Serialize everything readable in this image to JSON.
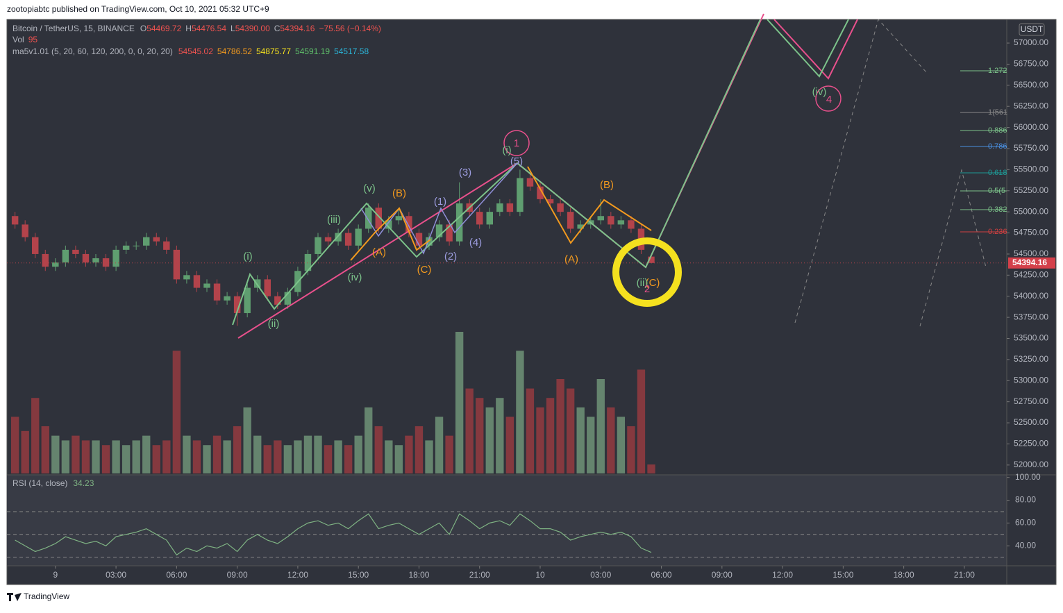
{
  "header": {
    "publisher": "zootopiabtc published on TradingView.com, Oct 10, 2021 05:32 UTC+9",
    "footer": "TradingView",
    "currency": "USDT"
  },
  "legend": {
    "symbol": "Bitcoin / TetherUS, 15, BINANCE",
    "o_label": "O",
    "o": "54469.72",
    "h_label": "H",
    "h": "54476.54",
    "l_label": "L",
    "l": "54390.00",
    "c_label": "C",
    "c": "54394.16",
    "change": "−75.56 (−0.14%)",
    "vol_label": "Vol",
    "vol": "95",
    "ma_label": "ma5v1.01 (5, 20, 60, 120, 200, 0, 0, 20, 20)",
    "ma": [
      "54545.02",
      "54786.52",
      "54875.77",
      "54591.19",
      "54517.58"
    ],
    "rsi_label": "RSI (14, close)",
    "rsi": "34.23"
  },
  "annotations": [
    "1",
    "(i)",
    "(ii)",
    "(iii)",
    "(iv)",
    "(v)",
    "(A)",
    "(B)",
    "(C)",
    "(1)",
    "(2)",
    "(3)",
    "(4)",
    "(5)",
    "(i)",
    "(A)",
    "(B)",
    "(C)",
    "(ii)",
    "2",
    "(iv)",
    "4"
  ],
  "fib_labels": [
    "1.272",
    "1(561",
    "0.886",
    "0.786",
    "0.618",
    "0.5(5",
    "0.382",
    "0.236"
  ],
  "chart_data": [
    {
      "type": "candlestick",
      "up_color": "#5f9e70",
      "down_color": "#b3434b",
      "x": [
        -2,
        -1.5,
        -1,
        -0.5,
        0,
        0.5,
        1,
        1.5,
        2,
        2.5,
        3,
        3.5,
        4,
        4.5,
        5,
        5.5,
        6,
        6.5,
        7,
        7.5,
        8,
        8.5,
        9,
        9.5,
        10,
        10.5,
        11,
        11.5,
        12,
        12.5,
        13,
        13.5,
        14,
        14.5,
        15,
        15.5,
        16,
        16.5,
        17,
        17.5,
        18,
        18.5,
        19,
        19.5,
        20,
        20.5,
        21,
        21.5,
        22,
        22.5,
        23,
        23.5,
        24,
        24.5,
        25,
        25.5,
        26,
        26.5,
        27,
        27.5,
        28,
        28.5,
        29,
        29.5
      ],
      "open": [
        54950,
        54850,
        54700,
        54500,
        54350,
        54400,
        54550,
        54500,
        54400,
        54450,
        54350,
        54550,
        54600,
        54600,
        54700,
        54650,
        54550,
        54200,
        54250,
        54100,
        54150,
        53950,
        54000,
        53800,
        54100,
        54200,
        54000,
        53900,
        54050,
        54300,
        54500,
        54700,
        54650,
        54750,
        54600,
        54800,
        55050,
        54800,
        54900,
        54950,
        54750,
        54600,
        54700,
        54850,
        54650,
        55100,
        55000,
        54850,
        55000,
        55100,
        55000,
        55400,
        55300,
        55150,
        55100,
        55000,
        54800,
        54850,
        54900,
        54950,
        54850,
        54900,
        54800,
        54469.72
      ],
      "high": [
        55000,
        54900,
        54750,
        54550,
        54450,
        54600,
        54600,
        54550,
        54500,
        54500,
        54600,
        54650,
        54650,
        54750,
        54750,
        54700,
        54600,
        54300,
        54300,
        54200,
        54200,
        54050,
        54050,
        54150,
        54250,
        54250,
        54050,
        54100,
        54350,
        54550,
        54750,
        54750,
        54800,
        54800,
        54850,
        55100,
        55100,
        54950,
        55050,
        55000,
        54800,
        54750,
        54900,
        54900,
        55350,
        55150,
        55050,
        55050,
        55150,
        55150,
        55500,
        55450,
        55350,
        55200,
        55150,
        55050,
        54900,
        54950,
        55150,
        55000,
        54950,
        54950,
        54850,
        54476.54
      ],
      "low": [
        54800,
        54650,
        54450,
        54300,
        54300,
        54350,
        54450,
        54350,
        54350,
        54300,
        54300,
        54500,
        54550,
        54550,
        54600,
        54500,
        54150,
        54150,
        54050,
        54050,
        53900,
        53900,
        53650,
        53750,
        54050,
        53950,
        53850,
        53850,
        54000,
        54250,
        54450,
        54600,
        54600,
        54550,
        54550,
        54750,
        54750,
        54750,
        54850,
        54700,
        54550,
        54550,
        54650,
        54600,
        54600,
        54950,
        54800,
        54800,
        54950,
        54950,
        54950,
        55250,
        55100,
        55050,
        54950,
        54750,
        54750,
        54800,
        54850,
        54800,
        54800,
        54750,
        54500,
        54390
      ],
      "close": [
        54850,
        54700,
        54500,
        54350,
        54400,
        54550,
        54500,
        54400,
        54450,
        54350,
        54550,
        54600,
        54600,
        54700,
        54650,
        54550,
        54200,
        54250,
        54100,
        54150,
        53950,
        54000,
        53800,
        54100,
        54200,
        54000,
        53900,
        54050,
        54300,
        54500,
        54700,
        54650,
        54750,
        54600,
        54800,
        55050,
        54800,
        54900,
        54950,
        54750,
        54600,
        54700,
        54850,
        54650,
        55100,
        55000,
        54850,
        55000,
        55100,
        55000,
        55400,
        55300,
        55150,
        55100,
        55000,
        54800,
        54850,
        54900,
        54950,
        54850,
        54900,
        54800,
        54550,
        54394.16
      ],
      "xlim": [
        -2.4,
        47.1
      ],
      "xticks": [
        {
          "value": 0,
          "label": "9"
        },
        {
          "value": 3,
          "label": "03:00"
        },
        {
          "value": 6,
          "label": "06:00"
        },
        {
          "value": 9,
          "label": "09:00"
        },
        {
          "value": 12,
          "label": "12:00"
        },
        {
          "value": 15,
          "label": "15:00"
        },
        {
          "value": 18,
          "label": "18:00"
        },
        {
          "value": 21,
          "label": "21:00"
        },
        {
          "value": 24,
          "label": "10"
        },
        {
          "value": 27,
          "label": "03:00"
        },
        {
          "value": 30,
          "label": "06:00"
        },
        {
          "value": 33,
          "label": "09:00"
        },
        {
          "value": 36,
          "label": "12:00"
        },
        {
          "value": 39,
          "label": "15:00"
        },
        {
          "value": 42,
          "label": "18:00"
        },
        {
          "value": 45,
          "label": "21:00"
        }
      ],
      "ylim": [
        51900,
        57280
      ],
      "yticks": [
        {
          "value": 52000,
          "label": "52000.00"
        },
        {
          "value": 52250,
          "label": "52250.00"
        },
        {
          "value": 52500,
          "label": "52500.00"
        },
        {
          "value": 52750,
          "label": "52750.00"
        },
        {
          "value": 53000,
          "label": "53000.00"
        },
        {
          "value": 53250,
          "label": "53250.00"
        },
        {
          "value": 53500,
          "label": "53500.00"
        },
        {
          "value": 53750,
          "label": "53750.00"
        },
        {
          "value": 54000,
          "label": "54000.00"
        },
        {
          "value": 54250,
          "label": "54250.00"
        },
        {
          "value": 54500,
          "label": "54500.00"
        },
        {
          "value": 54750,
          "label": "54750.00"
        },
        {
          "value": 55000,
          "label": "55000.00"
        },
        {
          "value": 55250,
          "label": "55250.00"
        },
        {
          "value": 55500,
          "label": "55500.00"
        },
        {
          "value": 55750,
          "label": "55750.00"
        },
        {
          "value": 56000,
          "label": "56000.00"
        },
        {
          "value": 56250,
          "label": "56250.00"
        },
        {
          "value": 56500,
          "label": "56500.00"
        },
        {
          "value": 56750,
          "label": "56750.00"
        },
        {
          "value": 57000,
          "label": "57000.00"
        }
      ]
    },
    {
      "type": "bar",
      "up_color": "#6b8d74",
      "down_color": "#8f3a40",
      "x": [
        -2,
        -1.5,
        -1,
        -0.5,
        0,
        0.5,
        1,
        1.5,
        2,
        2.5,
        3,
        3.5,
        4,
        4.5,
        5,
        5.5,
        6,
        6.5,
        7,
        7.5,
        8,
        8.5,
        9,
        9.5,
        10,
        10.5,
        11,
        11.5,
        12,
        12.5,
        13,
        13.5,
        14,
        14.5,
        15,
        15.5,
        16,
        16.5,
        17,
        17.5,
        18,
        18.5,
        19,
        19.5,
        20,
        20.5,
        21,
        21.5,
        22,
        22.5,
        23,
        23.5,
        24,
        24.5,
        25,
        25.5,
        26,
        26.5,
        27,
        27.5,
        28,
        28.5,
        29,
        29.5
      ],
      "values": [
        600,
        450,
        800,
        500,
        400,
        350,
        400,
        350,
        350,
        300,
        350,
        300,
        350,
        400,
        300,
        350,
        1300,
        400,
        350,
        300,
        400,
        350,
        500,
        700,
        400,
        300,
        350,
        300,
        350,
        400,
        400,
        300,
        350,
        300,
        400,
        700,
        500,
        350,
        300,
        400,
        500,
        350,
        600,
        400,
        1500,
        900,
        800,
        700,
        800,
        600,
        1300,
        900,
        700,
        800,
        1000,
        900,
        700,
        600,
        1000,
        700,
        600,
        500,
        1100,
        95
      ],
      "ylim": [
        0,
        2500
      ]
    },
    {
      "type": "line",
      "color": "#7fb383",
      "x": [
        -2,
        -1.5,
        -1,
        -0.5,
        0,
        0.5,
        1,
        1.5,
        2,
        2.5,
        3,
        3.5,
        4,
        4.5,
        5,
        5.5,
        6,
        6.5,
        7,
        7.5,
        8,
        8.5,
        9,
        9.5,
        10,
        10.5,
        11,
        11.5,
        12,
        12.5,
        13,
        13.5,
        14,
        14.5,
        15,
        15.5,
        16,
        16.5,
        17,
        17.5,
        18,
        18.5,
        19,
        19.5,
        20,
        20.5,
        21,
        21.5,
        22,
        22.5,
        23,
        23.5,
        24,
        24.5,
        25,
        25.5,
        26,
        26.5,
        27,
        27.5,
        28,
        28.5,
        29,
        29.5
      ],
      "values": [
        45,
        40,
        35,
        38,
        42,
        48,
        45,
        42,
        44,
        40,
        48,
        50,
        52,
        55,
        50,
        45,
        32,
        38,
        35,
        40,
        38,
        42,
        35,
        45,
        50,
        45,
        42,
        48,
        55,
        60,
        62,
        58,
        60,
        55,
        62,
        68,
        55,
        58,
        60,
        55,
        50,
        55,
        60,
        50,
        68,
        62,
        55,
        60,
        62,
        58,
        68,
        62,
        55,
        55,
        52,
        45,
        48,
        50,
        52,
        50,
        52,
        48,
        38,
        34.23
      ],
      "ylim": [
        22.5,
        101
      ],
      "yticks": [
        {
          "value": 40,
          "label": "40.00"
        },
        {
          "value": 60,
          "label": "60.00"
        },
        {
          "value": 80,
          "label": "80.00"
        },
        {
          "value": 100,
          "label": "100.00"
        }
      ],
      "bands": [
        70,
        50,
        30
      ]
    }
  ]
}
